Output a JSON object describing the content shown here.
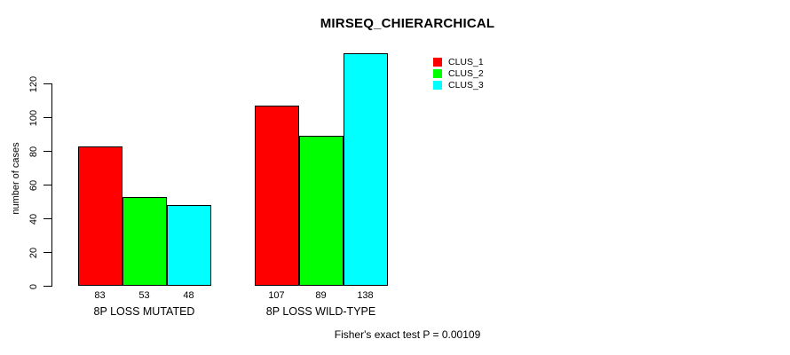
{
  "figure": {
    "background": "#ffffff",
    "text_color": "#000000",
    "axis_color": "#000000",
    "bar_border_color": "#000000"
  },
  "chart_data": {
    "type": "bar",
    "title": "MIRSEQ_CHIERARCHICAL",
    "xlabel": "",
    "ylabel": "number of cases",
    "categories": [
      "8P LOSS MUTATED",
      "8P LOSS WILD-TYPE"
    ],
    "series": [
      {
        "name": "CLUS_1",
        "color": "#ff0000",
        "values": [
          83,
          107
        ]
      },
      {
        "name": "CLUS_2",
        "color": "#00ff00",
        "values": [
          53,
          89
        ]
      },
      {
        "name": "CLUS_3",
        "color": "#00ffff",
        "values": [
          48,
          138
        ]
      }
    ],
    "bar_value_labels": [
      [
        83,
        53,
        48
      ],
      [
        107,
        89,
        138
      ]
    ],
    "yticks": [
      0,
      20,
      40,
      60,
      80,
      100,
      120
    ],
    "ylim": [
      0,
      140
    ],
    "grid": false,
    "legend": {
      "position": "top-right",
      "entries": [
        "CLUS_1",
        "CLUS_2",
        "CLUS_3"
      ]
    }
  },
  "footnote": "Fisher's exact test P = 0.00109"
}
